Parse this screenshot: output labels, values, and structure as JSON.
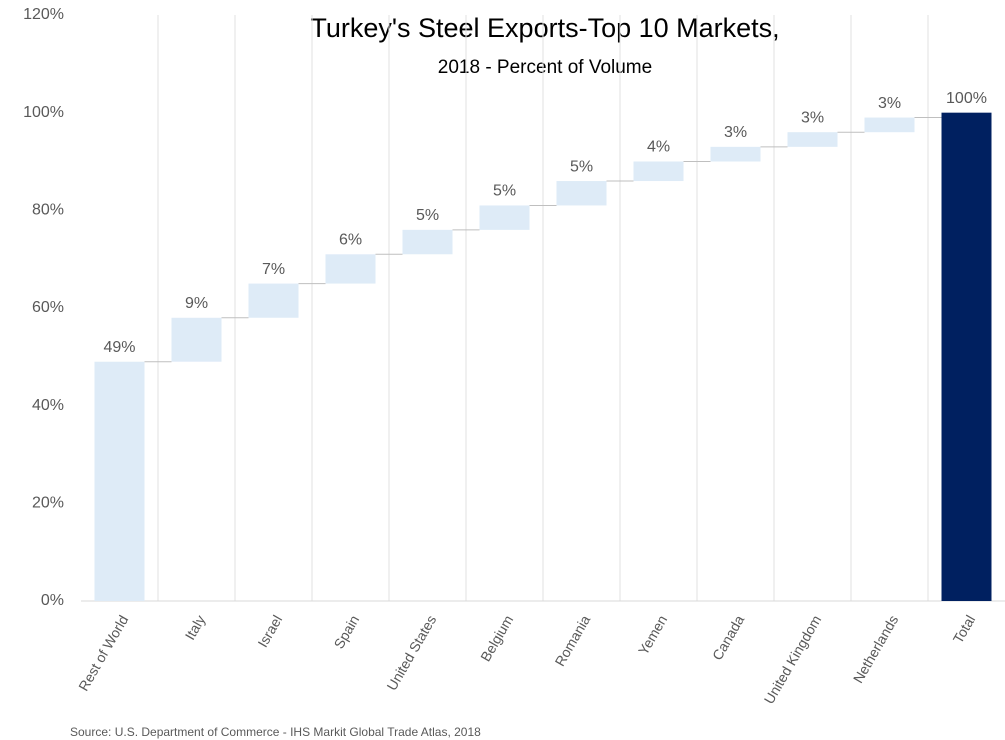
{
  "chart_data": {
    "type": "waterfall",
    "title": "Turkey's Steel Exports-Top 10 Markets,",
    "subtitle": "2018 - Percent of Volume",
    "note": "Source: U.S. Department of Commerce - IHS Markit Global Trade Atlas, 2018",
    "categories": [
      "Rest of World",
      "Italy",
      "Israel",
      "Spain",
      "United States",
      "Belgium",
      "Romania",
      "Yemen",
      "Canada",
      "United Kingdom",
      "Netherlands",
      "Total"
    ],
    "values": [
      49,
      9,
      7,
      6,
      5,
      5,
      5,
      4,
      3,
      3,
      3,
      100
    ],
    "value_labels": [
      "49%",
      "9%",
      "7%",
      "6%",
      "5%",
      "5%",
      "5%",
      "4%",
      "3%",
      "3%",
      "3%",
      "100%"
    ],
    "color": "#deebf7",
    "total_color": "#002060",
    "last_is_total": true,
    "ylim": [
      0,
      120
    ],
    "yticks": [
      {
        "value": 0,
        "label": "0%"
      },
      {
        "value": 20,
        "label": "20%"
      },
      {
        "value": 40,
        "label": "40%"
      },
      {
        "value": 60,
        "label": "60%"
      },
      {
        "value": 80,
        "label": "80%"
      },
      {
        "value": 100,
        "label": "100%"
      },
      {
        "value": 120,
        "label": "120%"
      }
    ],
    "grid": false
  }
}
